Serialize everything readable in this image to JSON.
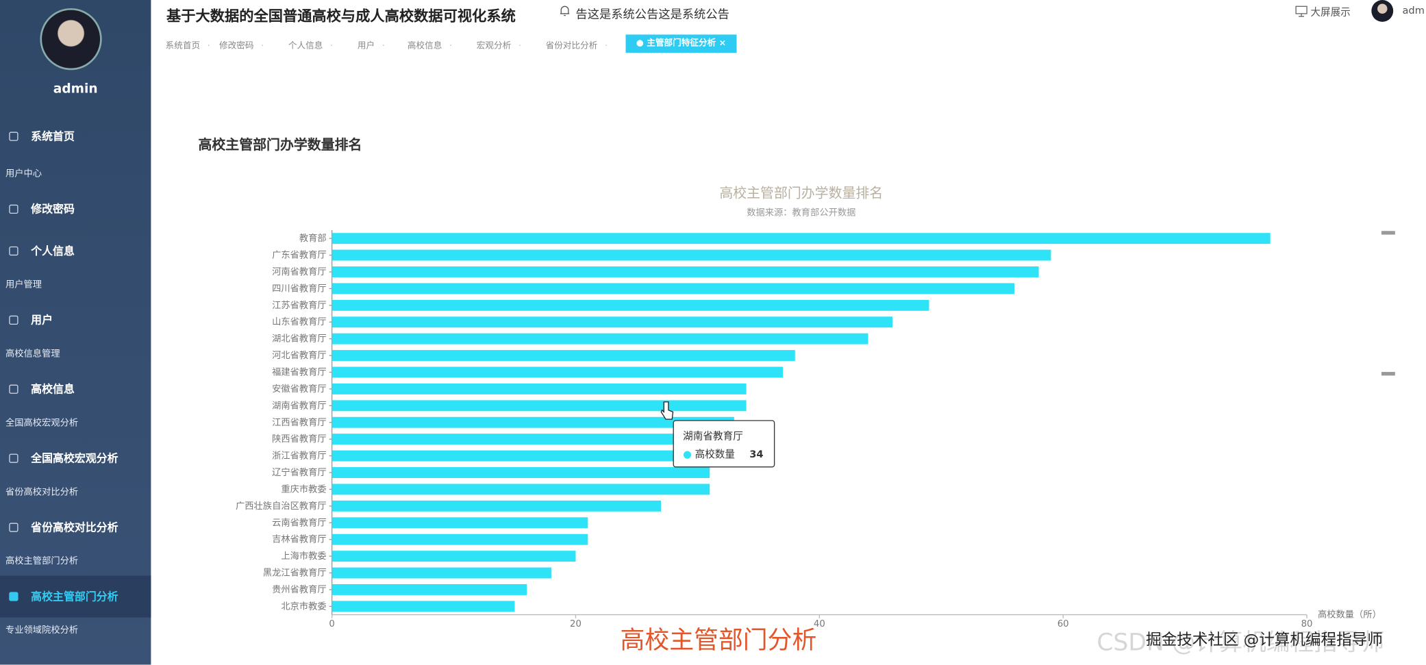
{
  "sidebar": {
    "user": "admin",
    "home": "系统首页",
    "groups": [
      {
        "title": "用户中心",
        "items": [
          "修改密码",
          "个人信息"
        ]
      },
      {
        "title": "用户管理",
        "items": [
          "用户"
        ]
      },
      {
        "title": "高校信息管理",
        "items": [
          "高校信息"
        ]
      },
      {
        "title": "全国高校宏观分析",
        "items": [
          "全国高校宏观分析"
        ]
      },
      {
        "title": "省份高校对比分析",
        "items": [
          "省份高校对比分析"
        ]
      },
      {
        "title": "高校主管部门分析",
        "items": [
          "高校主管部门分析"
        ]
      },
      {
        "title": "专业领域院校分析",
        "items": []
      }
    ]
  },
  "header": {
    "title": "基于大数据的全国普通高校与成人高校数据可视化系统",
    "notice": "告这是系统公告这是系统公告",
    "screen": "大屏展示",
    "user": "adm"
  },
  "tabs": [
    "系统首页",
    "修改密码",
    "个人信息",
    "用户",
    "高校信息",
    "宏观分析",
    "省份对比分析"
  ],
  "active_tab": "主管部门特征分析",
  "card_title": "高校主管部门办学数量排名",
  "chart_data": {
    "type": "bar",
    "horizontal": true,
    "title": "高校主管部门办学数量排名",
    "subtitle": "数据来源：教育部公开数据",
    "x_axis_label": "高校数量（所）",
    "series_name": "高校数量",
    "categories": [
      "教育部",
      "广东省教育厅",
      "河南省教育厅",
      "四川省教育厅",
      "江苏省教育厅",
      "山东省教育厅",
      "湖北省教育厅",
      "河北省教育厅",
      "福建省教育厅",
      "安徽省教育厅",
      "湖南省教育厅",
      "江西省教育厅",
      "陕西省教育厅",
      "浙江省教育厅",
      "辽宁省教育厅",
      "重庆市教委",
      "广西壮族自治区教育厅",
      "云南省教育厅",
      "吉林省教育厅",
      "上海市教委",
      "黑龙江省教育厅",
      "贵州省教育厅",
      "北京市教委"
    ],
    "values": [
      77,
      59,
      58,
      56,
      49,
      46,
      44,
      38,
      37,
      34,
      34,
      33,
      33,
      32,
      31,
      31,
      27,
      21,
      21,
      20,
      18,
      16,
      15
    ],
    "color": "#2ee3f7",
    "xlim": [
      0,
      80
    ],
    "xticks": [
      0,
      20,
      40,
      60,
      80
    ]
  },
  "overlay": {
    "caption": "高校主管部门分析",
    "watermark": "掘金技术社区 @计算机编程指导师",
    "watermark_back": "CSDN @计算机编程指导师"
  }
}
